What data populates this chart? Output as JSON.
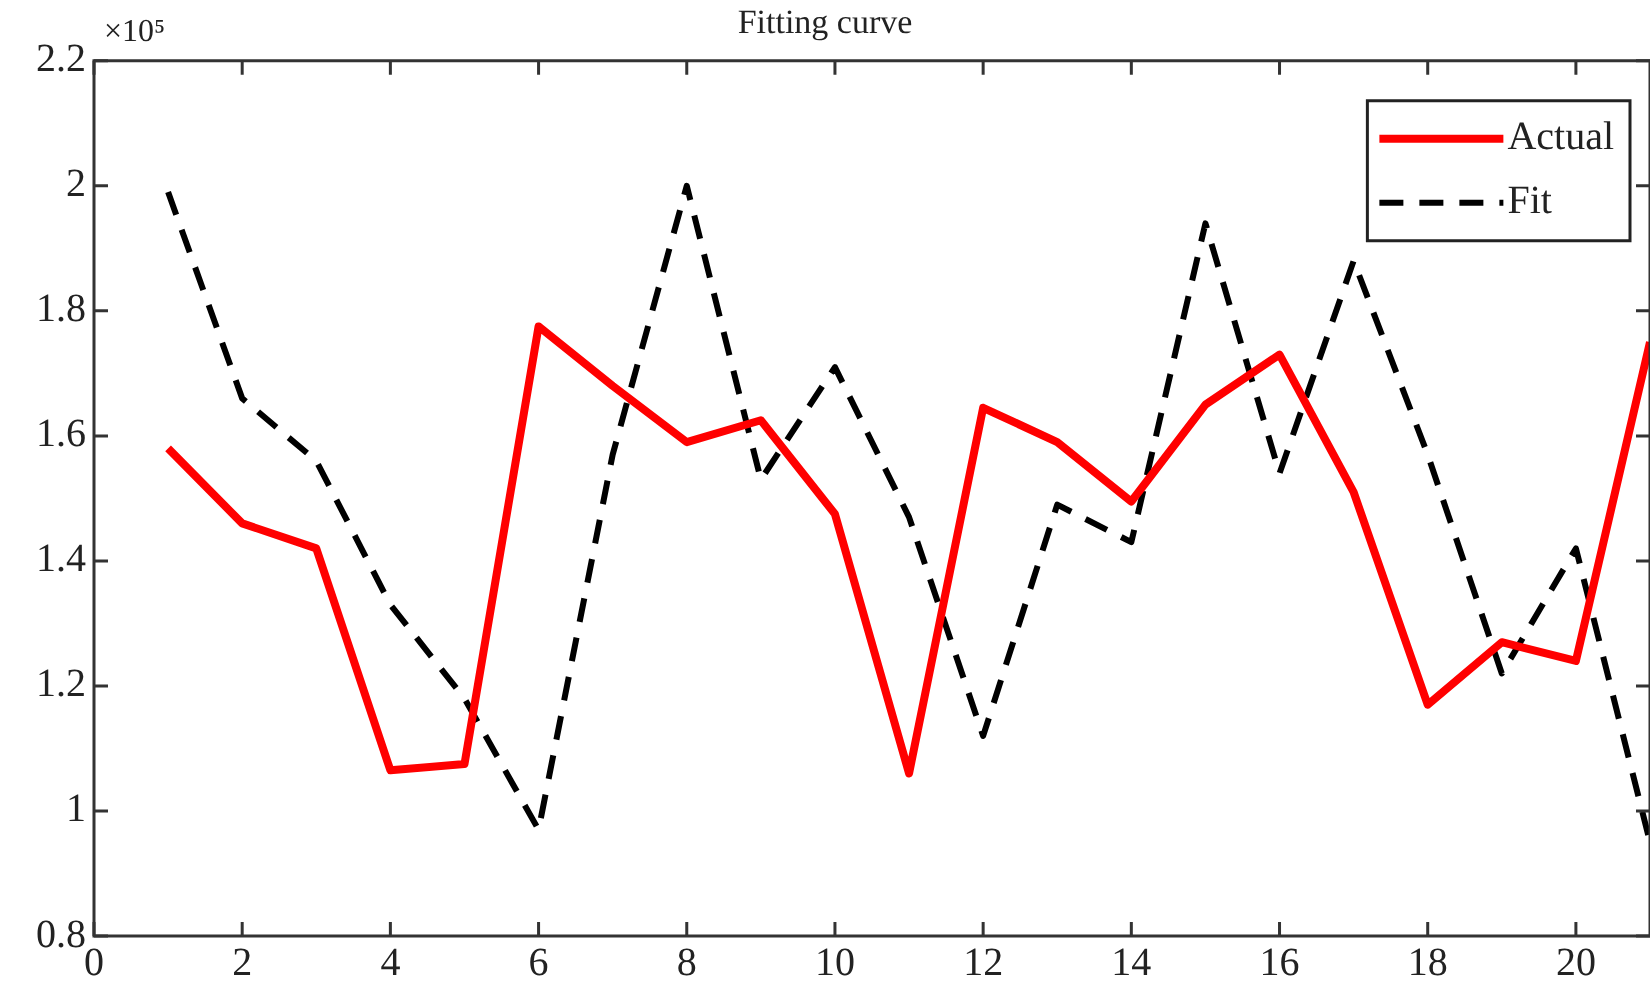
{
  "chart_data": {
    "type": "line",
    "title": "Fitting curve",
    "annotations": [
      "×10⁵"
    ],
    "x": [
      1,
      2,
      3,
      4,
      5,
      6,
      7,
      8,
      9,
      10,
      11,
      12,
      13,
      14,
      15,
      16,
      17,
      18,
      19,
      20,
      21
    ],
    "series": [
      {
        "name": "Actual",
        "color": "#ff0000",
        "line_style": "solid",
        "values": [
          1.58,
          1.46,
          1.42,
          1.065,
          1.075,
          1.775,
          1.68,
          1.59,
          1.625,
          1.475,
          1.06,
          1.645,
          1.59,
          1.495,
          1.65,
          1.73,
          1.51,
          1.17,
          1.27,
          1.24,
          1.75
        ]
      },
      {
        "name": "Fit",
        "color": "#000000",
        "line_style": "dashed",
        "values": [
          1.99,
          1.66,
          1.56,
          1.33,
          1.18,
          0.97,
          1.57,
          2.0,
          1.53,
          1.71,
          1.47,
          1.12,
          1.49,
          1.43,
          1.94,
          1.54,
          1.88,
          1.57,
          1.22,
          1.42,
          0.95
        ]
      }
    ],
    "xlim": [
      0,
      21
    ],
    "xticks": [
      0,
      2,
      4,
      6,
      8,
      10,
      12,
      14,
      16,
      18,
      20
    ],
    "ylim": [
      0.8,
      2.2
    ],
    "yticks": [
      0.8,
      1,
      1.2,
      1.4,
      1.6,
      1.8,
      2,
      2.2
    ],
    "grid": false,
    "legend": "top right",
    "marker": "none"
  }
}
